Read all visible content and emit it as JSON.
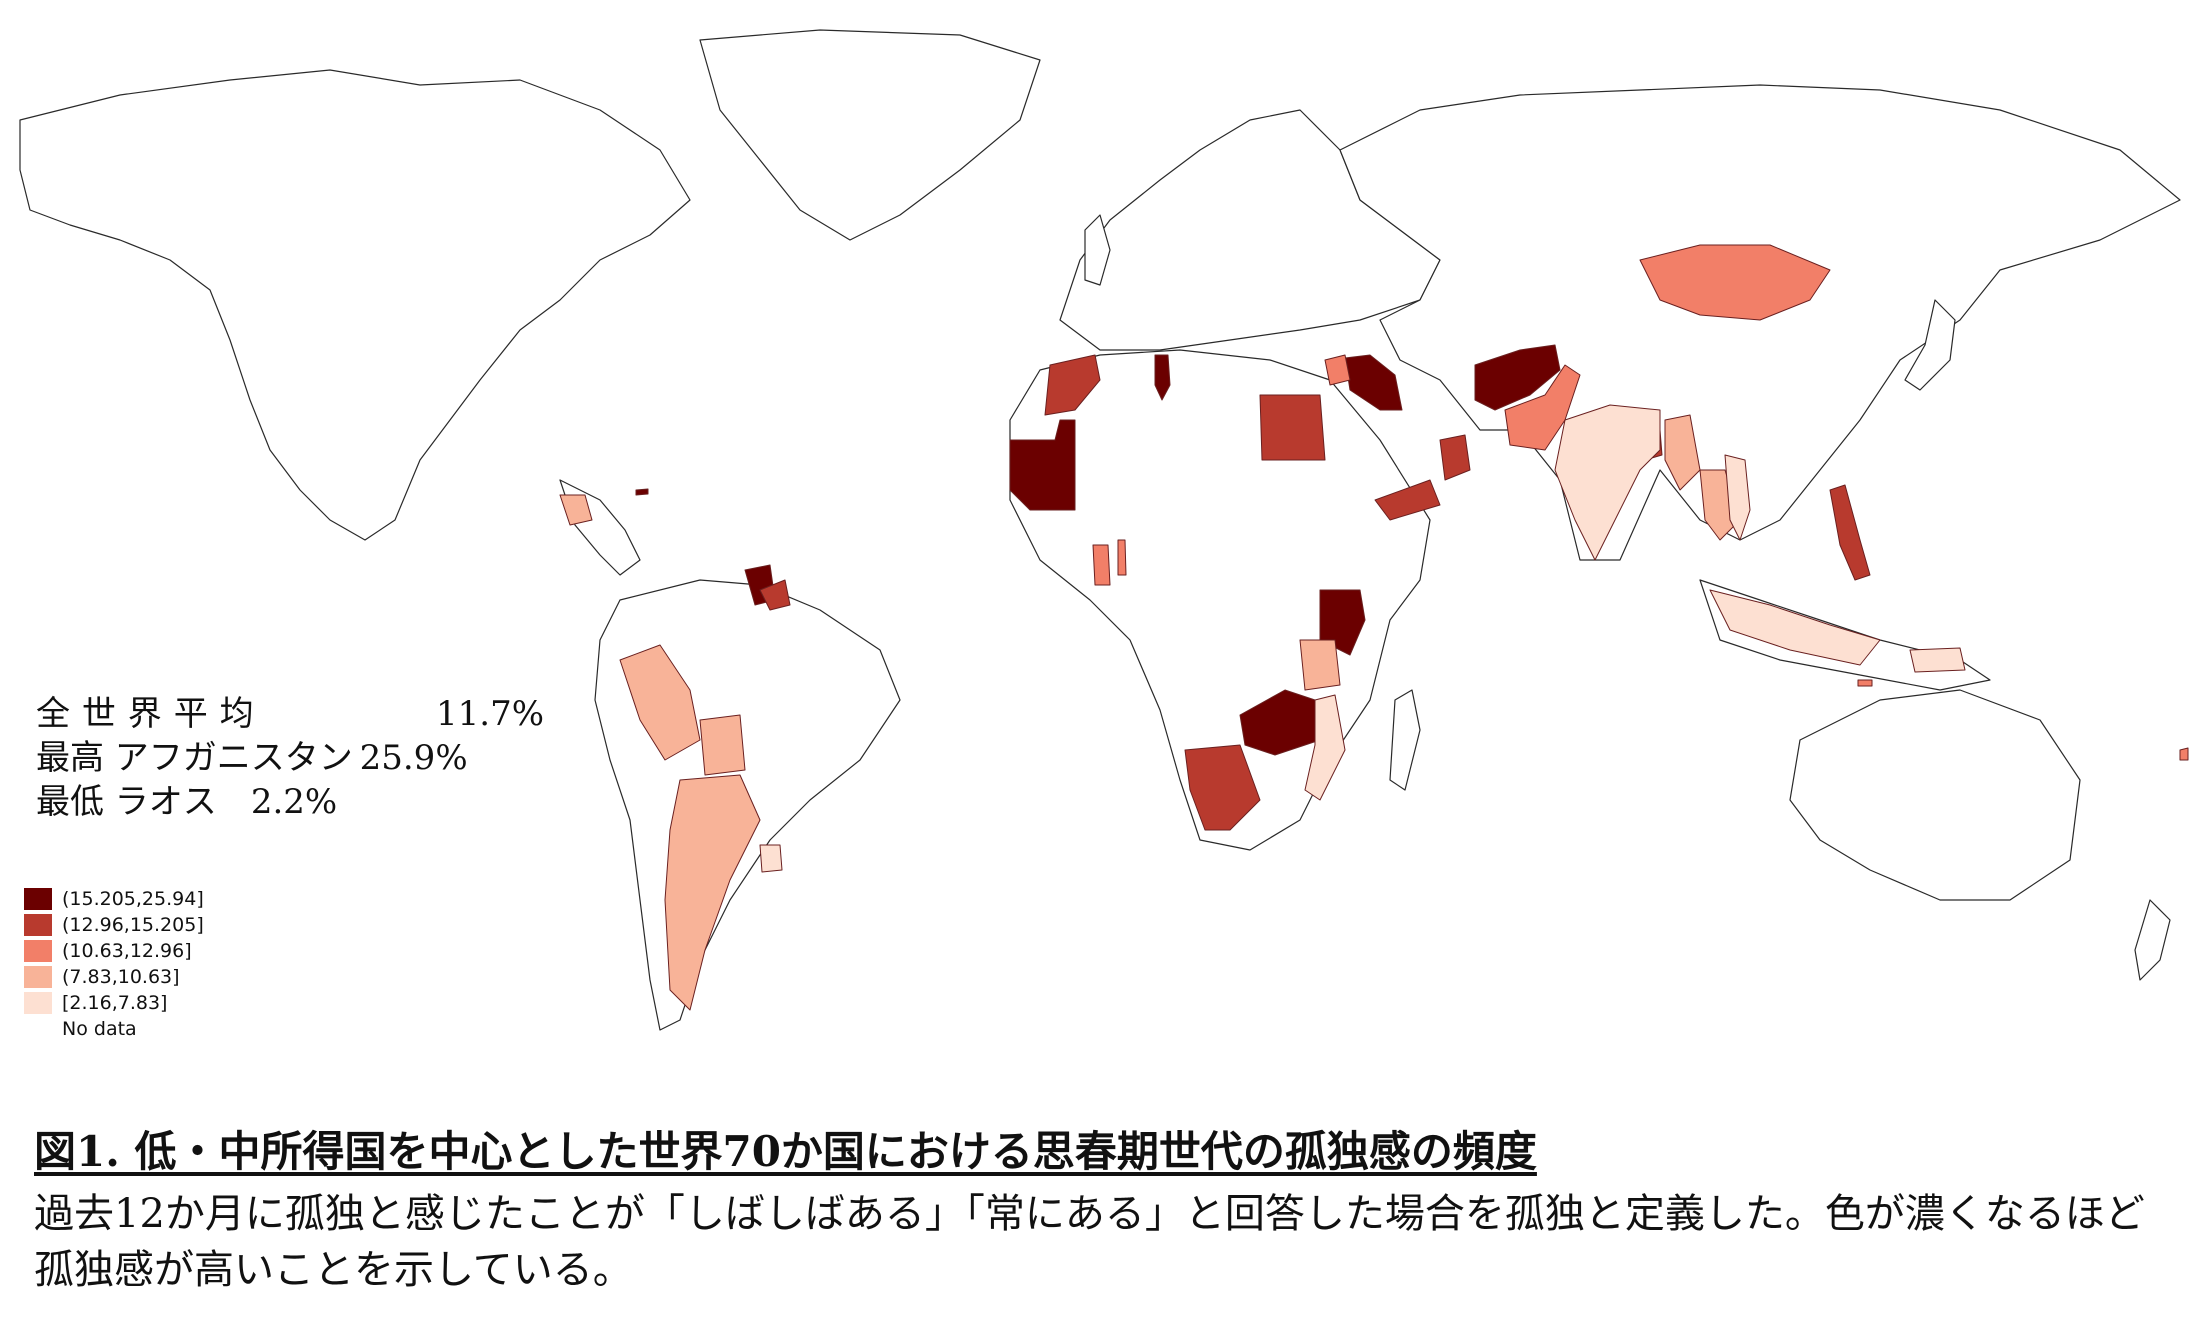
{
  "stats": {
    "world_label": "全世界平均",
    "world_value": "11.7%",
    "max_label": "最高 アフガニスタン",
    "max_value": "25.9%",
    "min_label": "最低 ラオス",
    "min_value": "2.2%"
  },
  "legend": [
    {
      "label": "(15.205,25.94]",
      "color": "#6b0000"
    },
    {
      "label": "(12.96,15.205]",
      "color": "#b83a2e"
    },
    {
      "label": "(10.63,12.96]",
      "color": "#f27f68"
    },
    {
      "label": "(7.83,10.63]",
      "color": "#f8b398"
    },
    {
      "label": "[2.16,7.83]",
      "color": "#fde0d2"
    },
    {
      "label": "No data",
      "color": "#ffffff"
    }
  ],
  "caption": {
    "title": "図1. 低・中所得国を中心とした世界70か国における思春期世代の孤独感の頻度",
    "description": "過去12か月に孤独と感じたことが「しばしばある」「常にある」と回答した場合を孤独と定義した。色が濃くなるほど孤独感が高いことを示している。"
  }
}
